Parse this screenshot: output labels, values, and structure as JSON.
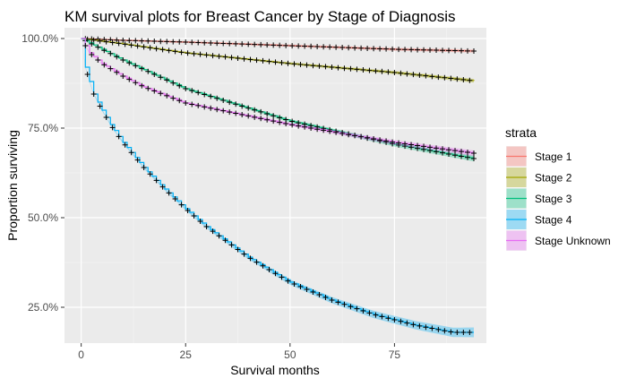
{
  "chart_data": {
    "type": "line",
    "title": "KM survival plots for Breast Cancer by Stage of Diagnosis",
    "xlabel": "Survival months",
    "ylabel": "Proportion surviving",
    "xlim": [
      -4,
      97
    ],
    "ylim": [
      0.15,
      1.03
    ],
    "x_ticks": [
      0,
      25,
      50,
      75
    ],
    "x_tick_labels": [
      "0",
      "25",
      "50",
      "75"
    ],
    "y_ticks": [
      0.25,
      0.5,
      0.75,
      1.0
    ],
    "y_tick_labels": [
      "25.0%",
      "50.0%",
      "75.0%",
      "100.0%"
    ],
    "grid": true,
    "legend_title": "strata",
    "legend_position": "right",
    "censor_marker": "+",
    "series": [
      {
        "name": "Stage 1",
        "color": "#F8766D",
        "x": [
          0,
          10,
          25,
          50,
          75,
          94
        ],
        "y": [
          1.0,
          0.995,
          0.99,
          0.98,
          0.97,
          0.965
        ]
      },
      {
        "name": "Stage 2",
        "color": "#A3A500",
        "x": [
          0,
          10,
          25,
          50,
          75,
          94
        ],
        "y": [
          1.0,
          0.985,
          0.96,
          0.93,
          0.905,
          0.882
        ]
      },
      {
        "name": "Stage 3",
        "color": "#00BF7D",
        "x": [
          0,
          5,
          10,
          25,
          50,
          75,
          94
        ],
        "y": [
          1.0,
          0.97,
          0.94,
          0.86,
          0.77,
          0.705,
          0.665
        ]
      },
      {
        "name": "Stage 4",
        "color": "#00B0F6",
        "x": [
          0,
          1,
          2,
          3,
          5,
          7,
          10,
          15,
          20,
          25,
          30,
          40,
          50,
          60,
          70,
          80,
          89,
          94
        ],
        "y": [
          1.0,
          0.92,
          0.88,
          0.845,
          0.8,
          0.76,
          0.71,
          0.64,
          0.58,
          0.525,
          0.475,
          0.39,
          0.32,
          0.27,
          0.23,
          0.2,
          0.18,
          0.18
        ]
      },
      {
        "name": "Stage Unknown",
        "color": "#E76BF3",
        "x": [
          0,
          2,
          5,
          10,
          15,
          25,
          50,
          75,
          94
        ],
        "y": [
          1.0,
          0.96,
          0.93,
          0.895,
          0.865,
          0.82,
          0.76,
          0.71,
          0.68
        ]
      }
    ]
  }
}
